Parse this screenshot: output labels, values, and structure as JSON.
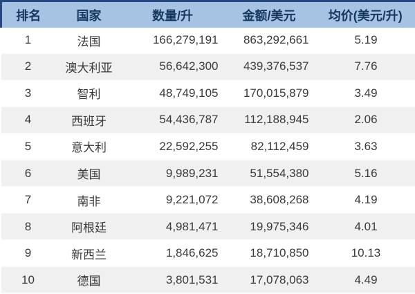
{
  "chart_data": {
    "type": "table",
    "columns": [
      "排名",
      "国家",
      "数量/升",
      "金额/美元",
      "均价(美元/升)"
    ],
    "rows": [
      {
        "rank": "1",
        "country": "法国",
        "quantity": "166,279,191",
        "amount": "863,292,661",
        "avg_price": "5.19"
      },
      {
        "rank": "2",
        "country": "澳大利亚",
        "quantity": "56,642,300",
        "amount": "439,376,537",
        "avg_price": "7.76"
      },
      {
        "rank": "3",
        "country": "智利",
        "quantity": "48,749,105",
        "amount": "170,015,879",
        "avg_price": "3.49"
      },
      {
        "rank": "4",
        "country": "西班牙",
        "quantity": "54,436,787",
        "amount": "112,188,945",
        "avg_price": "2.06"
      },
      {
        "rank": "5",
        "country": "意大利",
        "quantity": "22,592,255",
        "amount": "82,112,459",
        "avg_price": "3.63"
      },
      {
        "rank": "6",
        "country": "美国",
        "quantity": "9,989,231",
        "amount": "51,554,380",
        "avg_price": "5.16"
      },
      {
        "rank": "7",
        "country": "南非",
        "quantity": "9,221,072",
        "amount": "38,608,268",
        "avg_price": "4.19"
      },
      {
        "rank": "8",
        "country": "阿根廷",
        "quantity": "4,981,471",
        "amount": "19,975,346",
        "avg_price": "4.01"
      },
      {
        "rank": "9",
        "country": "新西兰",
        "quantity": "1,846,625",
        "amount": "18,710,850",
        "avg_price": "10.13"
      },
      {
        "rank": "10",
        "country": "德国",
        "quantity": "3,801,531",
        "amount": "17,078,063",
        "avg_price": "4.49"
      }
    ]
  },
  "colors": {
    "header_bg": "#A6C3E3",
    "header_text": "#17375E",
    "header_border": "#24487F",
    "alt_row_bg": "#F0F0F0",
    "row_text": "#3A3A3A"
  }
}
